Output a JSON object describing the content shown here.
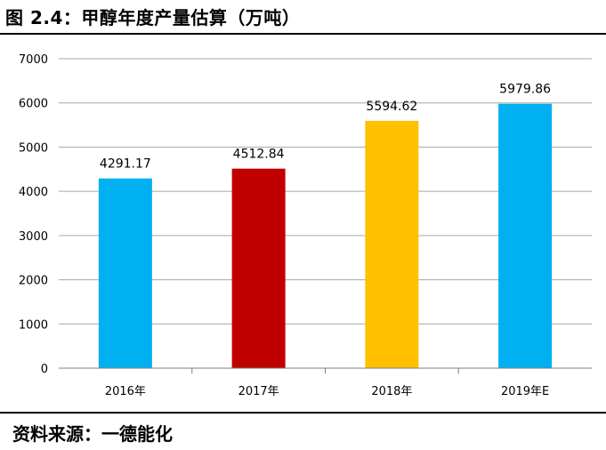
{
  "header": {
    "title": "图 2.4：甲醇年度产量估算（万吨）"
  },
  "footer": {
    "source": "资料来源：一德能化"
  },
  "chart_data": {
    "type": "bar",
    "title": "甲醇年度产量估算（万吨）",
    "categories": [
      "2016年",
      "2017年",
      "2018年",
      "2019年E"
    ],
    "values": [
      4291.17,
      4512.84,
      5594.62,
      5979.86
    ],
    "labels": [
      "4291.17",
      "4512.84",
      "5594.62",
      "5979.86"
    ],
    "colors": [
      "#00b0f0",
      "#c00000",
      "#ffc000",
      "#00b0f0"
    ],
    "ylim": [
      0,
      7000
    ],
    "yticks": [
      "0",
      "1000",
      "2000",
      "3000",
      "4000",
      "5000",
      "6000",
      "7000"
    ],
    "grid": true,
    "legend": "none"
  }
}
